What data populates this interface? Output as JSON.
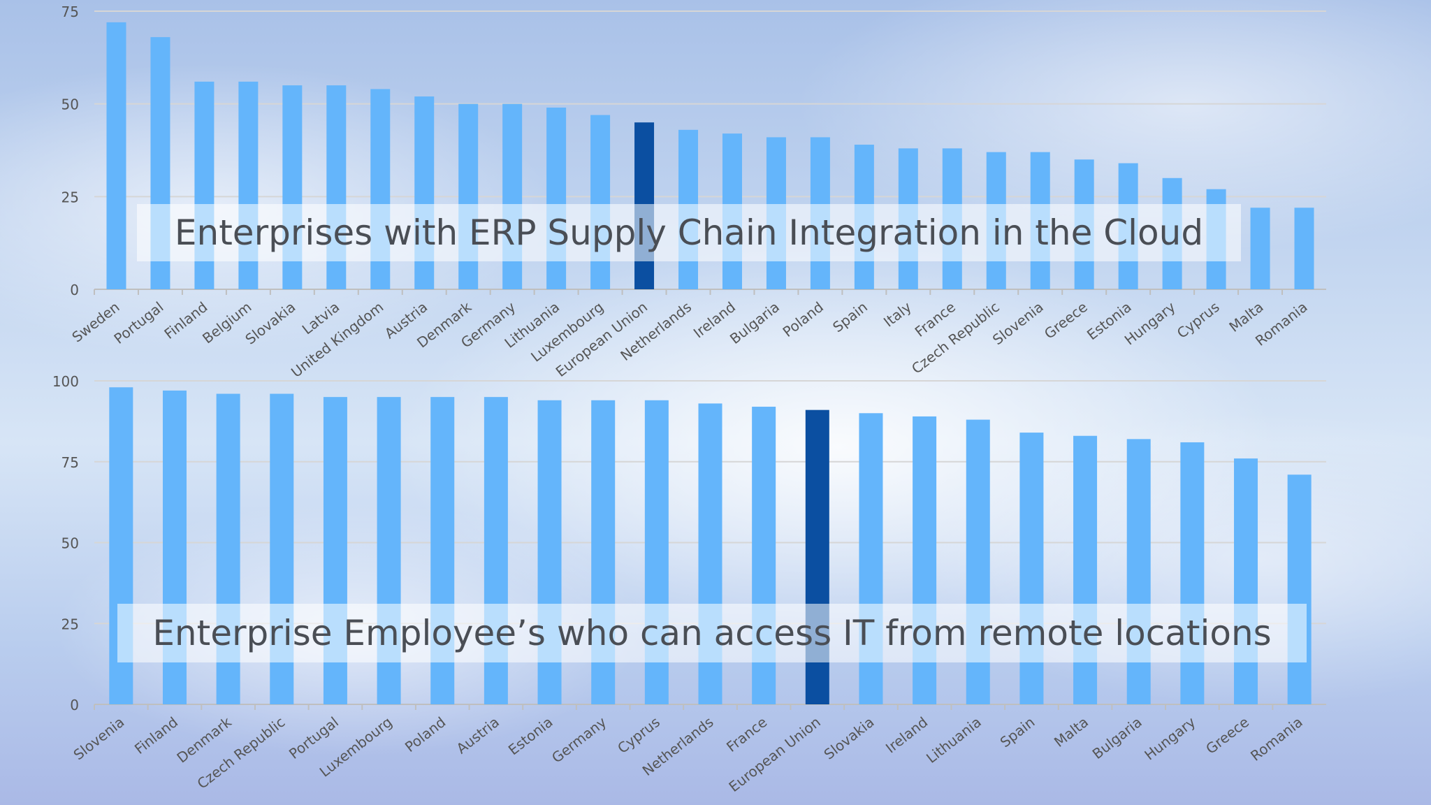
{
  "charts": {
    "chart_data": [
      {
        "type": "bar",
        "title": "Enterprises with ERP Supply Chain Integration in the Cloud",
        "xlabel": "",
        "ylabel": "",
        "ylim": [
          0,
          75
        ],
        "yticks": [
          "0",
          "25",
          "50",
          "75"
        ],
        "grid": true,
        "highlight_category": "European Union",
        "colors": {
          "bar": "#64b5fb",
          "highlight": "#0b4fa1",
          "grid": "#d6d6d6",
          "axis_text": "#555555"
        },
        "categories": [
          "Sweden",
          "Portugal",
          "Finland",
          "Belgium",
          "Slovakia",
          "Latvia",
          "United Kingdom",
          "Austria",
          "Denmark",
          "Germany",
          "Lithuania",
          "Luxembourg",
          "European Union",
          "Netherlands",
          "Ireland",
          "Bulgaria",
          "Poland",
          "Spain",
          "Italy",
          "France",
          "Czech Republic",
          "Slovenia",
          "Greece",
          "Estonia",
          "Hungary",
          "Cyprus",
          "Malta",
          "Romania"
        ],
        "values": [
          72,
          68,
          56,
          56,
          55,
          55,
          54,
          52,
          50,
          50,
          49,
          47,
          45,
          43,
          42,
          41,
          41,
          39,
          38,
          38,
          37,
          37,
          35,
          34,
          30,
          27,
          22,
          22
        ]
      },
      {
        "type": "bar",
        "title": "Enterprise Employee’s who can access IT from remote locations",
        "xlabel": "",
        "ylabel": "",
        "ylim": [
          0,
          100
        ],
        "yticks": [
          "0",
          "25",
          "50",
          "75",
          "100"
        ],
        "grid": true,
        "highlight_category": "European Union",
        "colors": {
          "bar": "#64b5fb",
          "highlight": "#0b4fa1",
          "grid": "#d6d6d6",
          "axis_text": "#555555"
        },
        "categories": [
          "Slovenia",
          "Finland",
          "Denmark",
          "Czech Republic",
          "Portugal",
          "Luxembourg",
          "Poland",
          "Austria",
          "Estonia",
          "Germany",
          "Cyprus",
          "Netherlands",
          "France",
          "European Union",
          "Slovakia",
          "Ireland",
          "Lithuania",
          "Spain",
          "Malta",
          "Bulgaria",
          "Hungary",
          "Greece",
          "Romania"
        ],
        "values": [
          98,
          97,
          96,
          96,
          95,
          95,
          95,
          95,
          94,
          94,
          94,
          93,
          92,
          91,
          90,
          89,
          88,
          84,
          83,
          82,
          81,
          76,
          71
        ]
      }
    ]
  }
}
